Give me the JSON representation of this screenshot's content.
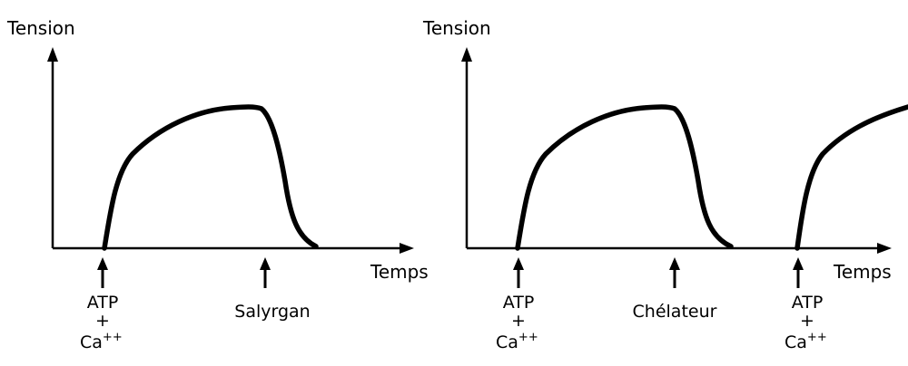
{
  "panels": [
    {
      "y_label": "Tension",
      "x_label": "Temps",
      "markers": [
        {
          "line1": "ATP",
          "line2": "+",
          "line3_base": "Ca",
          "line3_sup": "++"
        },
        {
          "single": "Salyrgan"
        }
      ]
    },
    {
      "y_label": "Tension",
      "x_label": "Temps",
      "markers": [
        {
          "line1": "ATP",
          "line2": "+",
          "line3_base": "Ca",
          "line3_sup": "++"
        },
        {
          "single": "Chélateur"
        },
        {
          "line1": "ATP",
          "line2": "+",
          "line3_base": "Ca",
          "line3_sup": "++"
        }
      ]
    }
  ]
}
